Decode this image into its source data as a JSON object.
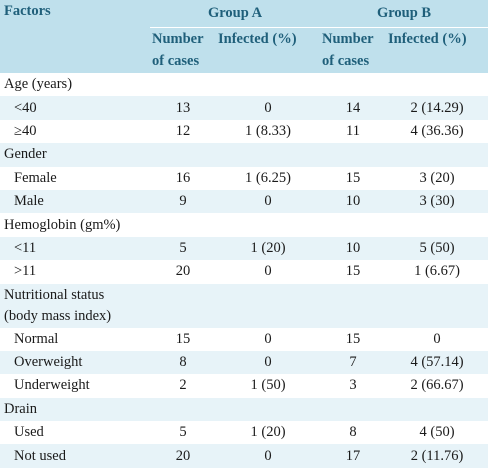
{
  "header": {
    "factors": "Factors",
    "group_a": "Group A",
    "group_b": "Group B",
    "col_cases_line1": "Number",
    "col_cases_line2": "of cases",
    "col_infected": "Infected (%)"
  },
  "rows": [
    {
      "label": "Age (years)",
      "kind": "section"
    },
    {
      "label": "<40",
      "a_cases": "13",
      "a_inf": "0",
      "b_cases": "14",
      "b_inf": "2 (14.29)"
    },
    {
      "label": "≥40",
      "a_cases": "12",
      "a_inf": "1 (8.33)",
      "b_cases": "11",
      "b_inf": "4 (36.36)"
    },
    {
      "label": "Gender",
      "kind": "section"
    },
    {
      "label": "Female",
      "a_cases": "16",
      "a_inf": "1 (6.25)",
      "b_cases": "15",
      "b_inf": "3 (20)"
    },
    {
      "label": "Male",
      "a_cases": "9",
      "a_inf": "0",
      "b_cases": "10",
      "b_inf": "3 (30)"
    },
    {
      "label": "Hemoglobin (gm%)",
      "kind": "section"
    },
    {
      "label": "<11",
      "a_cases": "5",
      "a_inf": "1 (20)",
      "b_cases": "10",
      "b_inf": "5 (50)"
    },
    {
      "label": ">11",
      "a_cases": "20",
      "a_inf": "0",
      "b_cases": "15",
      "b_inf": "1 (6.67)"
    },
    {
      "label": "Nutritional status",
      "label2": "(body mass index)",
      "kind": "section2"
    },
    {
      "label": "Normal",
      "a_cases": "15",
      "a_inf": "0",
      "b_cases": "15",
      "b_inf": "0"
    },
    {
      "label": "Overweight",
      "a_cases": "8",
      "a_inf": "0",
      "b_cases": "7",
      "b_inf": "4 (57.14)"
    },
    {
      "label": "Underweight",
      "a_cases": "2",
      "a_inf": "1 (50)",
      "b_cases": "3",
      "b_inf": "2 (66.67)"
    },
    {
      "label": "Drain",
      "kind": "section"
    },
    {
      "label": "Used",
      "a_cases": "5",
      "a_inf": "1 (20)",
      "b_cases": "8",
      "b_inf": "4 (50)"
    },
    {
      "label": "Not used",
      "a_cases": "20",
      "a_inf": "0",
      "b_cases": "17",
      "b_inf": "2 (11.76)"
    }
  ]
}
